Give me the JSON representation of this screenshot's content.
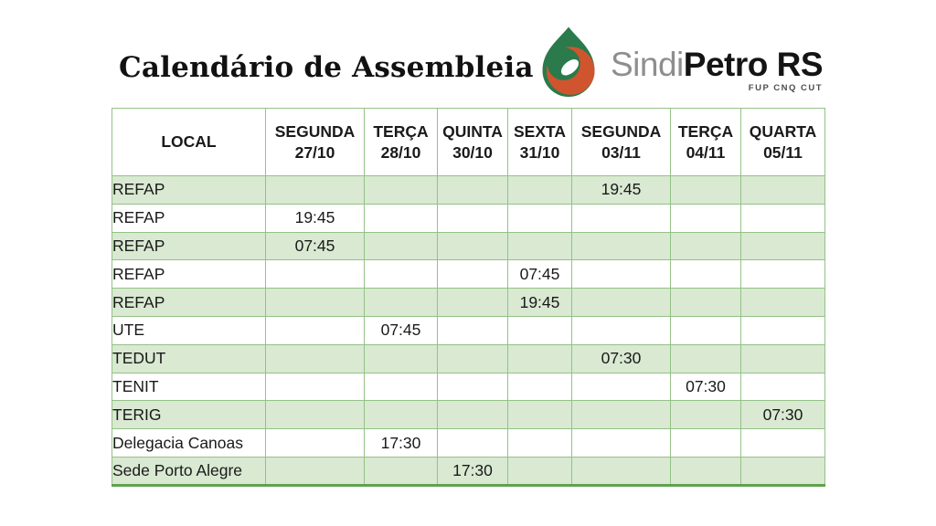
{
  "slide": {
    "title": "Calendário de Assembleia"
  },
  "logo": {
    "brand_prefix": "Sindi",
    "brand_main": "Petro RS",
    "affiliations": "FUP CNQ CUT",
    "colors": {
      "drop_green": "#2B7A4B",
      "drop_orange": "#D0552F",
      "prefix_gray": "#8E8E8E",
      "text_black": "#141414"
    }
  },
  "table": {
    "columns": [
      {
        "label": "LOCAL",
        "sublabel": ""
      },
      {
        "label": "SEGUNDA",
        "sublabel": "27/10"
      },
      {
        "label": "TERÇA",
        "sublabel": "28/10"
      },
      {
        "label": "QUINTA",
        "sublabel": "30/10"
      },
      {
        "label": "SEXTA",
        "sublabel": "31/10"
      },
      {
        "label": "SEGUNDA",
        "sublabel": "03/11"
      },
      {
        "label": "TERÇA",
        "sublabel": "04/11"
      },
      {
        "label": "QUARTA",
        "sublabel": "05/11"
      }
    ],
    "rows": [
      {
        "local": "REFAP",
        "times": [
          "",
          "",
          "",
          "",
          "19:45",
          "",
          ""
        ]
      },
      {
        "local": "REFAP",
        "times": [
          "19:45",
          "",
          "",
          "",
          "",
          "",
          ""
        ]
      },
      {
        "local": "REFAP",
        "times": [
          "07:45",
          "",
          "",
          "",
          "",
          "",
          ""
        ]
      },
      {
        "local": "REFAP",
        "times": [
          "",
          "",
          "",
          "07:45",
          "",
          "",
          ""
        ]
      },
      {
        "local": "REFAP",
        "times": [
          "",
          "",
          "",
          "19:45",
          "",
          "",
          ""
        ]
      },
      {
        "local": "UTE",
        "times": [
          "",
          "07:45",
          "",
          "",
          "",
          "",
          ""
        ]
      },
      {
        "local": "TEDUT",
        "times": [
          "",
          "",
          "",
          "",
          "07:30",
          "",
          ""
        ]
      },
      {
        "local": "TENIT",
        "times": [
          "",
          "",
          "",
          "",
          "",
          "07:30",
          ""
        ]
      },
      {
        "local": "TERIG",
        "times": [
          "",
          "",
          "",
          "",
          "",
          "",
          "07:30"
        ]
      },
      {
        "local": "Delegacia Canoas",
        "times": [
          "",
          "17:30",
          "",
          "",
          "",
          "",
          ""
        ]
      },
      {
        "local": "Sede Porto Alegre",
        "times": [
          "",
          "",
          "17:30",
          "",
          "",
          "",
          ""
        ]
      }
    ],
    "theme": {
      "row_shade_green": "#D9E9D2",
      "grid_green": "#94C187",
      "strong_green": "#61A14F"
    }
  }
}
